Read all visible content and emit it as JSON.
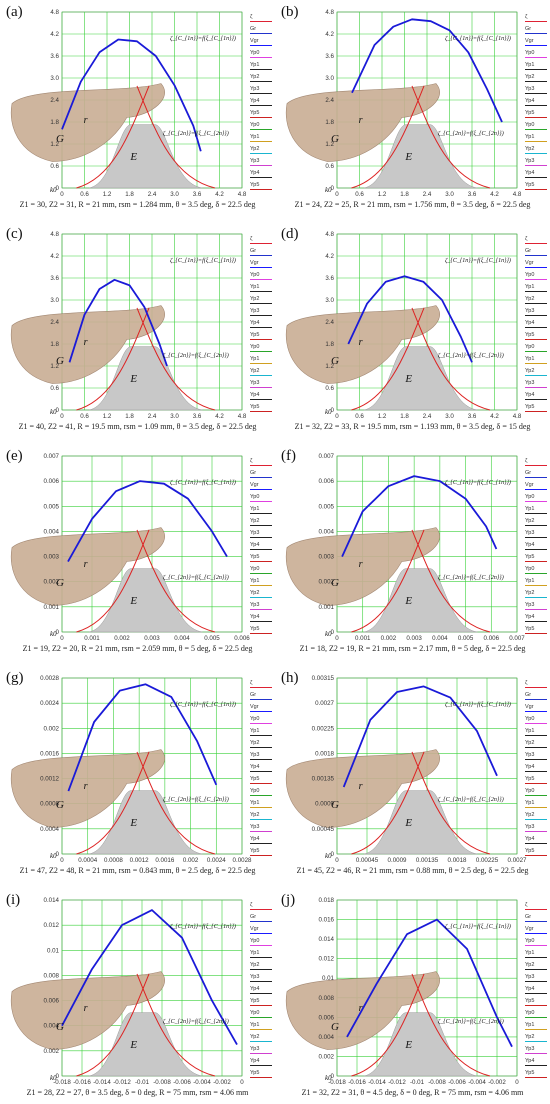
{
  "legend_labels": [
    "ζ",
    "Gr",
    "Vgr",
    "Yp0",
    "Yp1",
    "Yp2",
    "Yp3",
    "Yp4",
    "Yp5",
    "Yp0",
    "Yp1",
    "Yp2",
    "Yp3",
    "Yp4",
    "Yp5"
  ],
  "legend_colors": [
    "#d23",
    "#2233cc",
    "#1a1aff",
    "#e040e0",
    "#222",
    "#222",
    "#222",
    "#222",
    "#cc2222",
    "#2aa52a",
    "#d0a020",
    "#1ab5cf",
    "#d040d0",
    "#222",
    "#cc2222"
  ],
  "annotations": {
    "curve_top": "ζ_{C_{1n}}=f(ξ_{C_{1n}})",
    "curve_bot": "ζ_{C_{2n}}=f(ξ_{C_{2n}})",
    "G": "G",
    "E": "E",
    "r": "r",
    "k0": "k0"
  },
  "chart_data": [
    {
      "id": "a",
      "label": "(a)",
      "type": "line",
      "caption": "Z1 = 30, Z2 = 31, R = 21 mm, rsm = 1.284 mm, θ = 3.5 deg, δ = 22.5 deg",
      "xlim": [
        0,
        4.8
      ],
      "ylim": [
        0,
        4.8
      ],
      "xticks": [
        "0",
        "0.6",
        "1.2",
        "1.8",
        "2.4",
        "3.0",
        "3.6",
        "4.2",
        "4.8"
      ],
      "yticks": [
        "0",
        "0.6",
        "1.2",
        "1.8",
        "2.4",
        "3.0",
        "3.6",
        "4.2",
        "4.8"
      ],
      "series": [
        {
          "x": [
            0,
            0.5,
            1,
            1.5,
            2,
            2.5,
            3,
            3.5,
            3.7
          ],
          "y": [
            1.6,
            2.9,
            3.7,
            4.05,
            4.0,
            3.6,
            2.8,
            1.7,
            1.0
          ]
        }
      ]
    },
    {
      "id": "b",
      "label": "(b)",
      "type": "line",
      "caption": "Z1 = 24, Z2 = 25, R = 21 mm, rsm = 1.756 mm, θ = 3.5 deg, δ = 22.5 deg",
      "xlim": [
        0,
        4.8
      ],
      "ylim": [
        0,
        4.8
      ],
      "xticks": [
        "0",
        "0.6",
        "1.2",
        "1.8",
        "2.4",
        "3.0",
        "3.6",
        "4.2",
        "4.8"
      ],
      "yticks": [
        "0",
        "0.6",
        "1.2",
        "1.8",
        "2.4",
        "3.0",
        "3.6",
        "4.2",
        "4.8"
      ],
      "series": [
        {
          "x": [
            0.4,
            1,
            1.5,
            2,
            2.5,
            3,
            3.5,
            4,
            4.4
          ],
          "y": [
            2.6,
            3.9,
            4.4,
            4.6,
            4.55,
            4.3,
            3.7,
            2.7,
            1.8
          ]
        }
      ]
    },
    {
      "id": "c",
      "label": "(c)",
      "type": "line",
      "caption": "Z1 = 40, Z2 = 41, R = 19.5 mm, rsm = 1.09 mm, θ = 3.5 deg, δ = 22.5 deg",
      "xlim": [
        0,
        4.8
      ],
      "ylim": [
        0,
        4.8
      ],
      "xticks": [
        "0",
        "0.6",
        "1.2",
        "1.8",
        "2.4",
        "3.0",
        "3.6",
        "4.2",
        "4.8"
      ],
      "yticks": [
        "0",
        "0.6",
        "1.2",
        "1.8",
        "2.4",
        "3.0",
        "3.6",
        "4.2",
        "4.8"
      ],
      "series": [
        {
          "x": [
            0.2,
            0.6,
            1,
            1.4,
            1.8,
            2.2,
            2.6,
            2.8
          ],
          "y": [
            1.3,
            2.6,
            3.3,
            3.55,
            3.4,
            2.8,
            1.8,
            1.2
          ]
        }
      ]
    },
    {
      "id": "d",
      "label": "(d)",
      "type": "line",
      "caption": "Z1 = 32, Z2 = 33, R = 19.5 mm, rsm = 1.193 mm, θ = 3.5 deg, δ = 15 deg",
      "xlim": [
        0,
        4.8
      ],
      "ylim": [
        0,
        4.8
      ],
      "xticks": [
        "0",
        "0.6",
        "1.2",
        "1.8",
        "2.4",
        "3.0",
        "3.6",
        "4.2",
        "4.8"
      ],
      "yticks": [
        "0",
        "0.6",
        "1.2",
        "1.8",
        "2.4",
        "3.0",
        "3.6",
        "4.2",
        "4.8"
      ],
      "series": [
        {
          "x": [
            0.3,
            0.8,
            1.3,
            1.8,
            2.3,
            2.8,
            3.3,
            3.6
          ],
          "y": [
            1.8,
            2.9,
            3.5,
            3.65,
            3.5,
            3.0,
            2.0,
            1.3
          ]
        }
      ]
    },
    {
      "id": "e",
      "label": "(e)",
      "type": "line",
      "caption": "Z1 = 19, Z2 = 20, R = 21 mm, rsm = 2.059 mm, θ = 5 deg, δ = 22.5 deg",
      "xlim": [
        0,
        0.006
      ],
      "ylim": [
        0,
        0.007
      ],
      "xticks": [
        "0",
        "0.001",
        "0.002",
        "0.003",
        "0.004",
        "0.005",
        "0.006"
      ],
      "yticks": [
        "0",
        "0.001",
        "0.002",
        "0.003",
        "0.004",
        "0.005",
        "0.006",
        "0.007"
      ],
      "series": [
        {
          "x": [
            0.0002,
            0.001,
            0.0018,
            0.0026,
            0.0034,
            0.0042,
            0.005,
            0.0055
          ],
          "y": [
            0.0028,
            0.0045,
            0.0056,
            0.006,
            0.0059,
            0.0053,
            0.004,
            0.003
          ]
        }
      ]
    },
    {
      "id": "f",
      "label": "(f)",
      "type": "line",
      "caption": "Z1 = 18, Z2 = 19, R = 21 mm, rsm = 2.17 mm, θ = 5 deg, δ = 22.5 deg",
      "xlim": [
        0,
        0.007
      ],
      "ylim": [
        0,
        0.007
      ],
      "xticks": [
        "0",
        "0.001",
        "0.002",
        "0.003",
        "0.004",
        "0.005",
        "0.006",
        "0.007"
      ],
      "yticks": [
        "0",
        "0.001",
        "0.002",
        "0.003",
        "0.004",
        "0.005",
        "0.006",
        "0.007"
      ],
      "series": [
        {
          "x": [
            0.0002,
            0.001,
            0.002,
            0.003,
            0.004,
            0.005,
            0.0058,
            0.0062
          ],
          "y": [
            0.003,
            0.0048,
            0.0058,
            0.0062,
            0.006,
            0.0053,
            0.0042,
            0.0033
          ]
        }
      ]
    },
    {
      "id": "g",
      "label": "(g)",
      "type": "line",
      "caption": "Z1 = 47, Z2 = 48, R = 21 mm, rsm = 0.843 mm, θ = 2.5 deg, δ = 22.5 deg",
      "xlim": [
        0,
        0.0028
      ],
      "ylim": [
        0,
        0.0028
      ],
      "xticks": [
        "0",
        "0.0004",
        "0.0008",
        "0.0012",
        "0.0016",
        "0.002",
        "0.0024",
        "0.0028"
      ],
      "yticks": [
        "0",
        "0.0004",
        "0.0008",
        "0.0012",
        "0.0016",
        "0.002",
        "0.0024",
        "0.0028"
      ],
      "series": [
        {
          "x": [
            0.0001,
            0.0005,
            0.0009,
            0.0013,
            0.0017,
            0.0021,
            0.0024
          ],
          "y": [
            0.001,
            0.0021,
            0.0026,
            0.0027,
            0.0025,
            0.0018,
            0.0011
          ]
        }
      ]
    },
    {
      "id": "h",
      "label": "(h)",
      "type": "line",
      "caption": "Z1 = 45, Z2 = 46, R = 21 mm, rsm = 0.88 mm, θ = 2.5 deg, δ = 22.5 deg",
      "xlim": [
        0,
        0.0027
      ],
      "ylim": [
        0,
        0.00315
      ],
      "xticks": [
        "0",
        "0.00045",
        "0.0009",
        "0.00135",
        "0.0018",
        "0.00225",
        "0.0027"
      ],
      "yticks": [
        "0",
        "0.00045",
        "0.0009",
        "0.00135",
        "0.0018",
        "0.00225",
        "0.0027",
        "0.00315"
      ],
      "series": [
        {
          "x": [
            0.0001,
            0.0005,
            0.0009,
            0.0013,
            0.0017,
            0.0021,
            0.0024
          ],
          "y": [
            0.0012,
            0.0024,
            0.0029,
            0.003,
            0.0028,
            0.0022,
            0.0014
          ]
        }
      ]
    },
    {
      "id": "i",
      "label": "(i)",
      "type": "line",
      "caption": "Z1 = 28, Z2 = 27, θ = 3.5 deg, δ = 0 deg, R = 75 mm, rsm = 4.06 mm",
      "xlim": [
        -0.018,
        0
      ],
      "ylim": [
        0,
        0.014
      ],
      "xticks": [
        "-0.018",
        "-0.016",
        "-0.014",
        "-0.012",
        "-0.01",
        "-0.008",
        "-0.006",
        "-0.004",
        "-0.002",
        "0"
      ],
      "yticks": [
        "0",
        "0.002",
        "0.004",
        "0.006",
        "0.008",
        "0.01",
        "0.012",
        "0.014"
      ],
      "series": [
        {
          "x": [
            -0.018,
            -0.015,
            -0.012,
            -0.009,
            -0.006,
            -0.003,
            -0.0005
          ],
          "y": [
            0.004,
            0.0085,
            0.012,
            0.0132,
            0.011,
            0.006,
            0.0025
          ]
        }
      ]
    },
    {
      "id": "j",
      "label": "(j)",
      "type": "line",
      "caption": "Z1 = 32, Z2 = 31, θ = 4.5 deg, δ = 0 deg, R = 75 mm, rsm = 4.06 mm",
      "xlim": [
        -0.018,
        0
      ],
      "ylim": [
        0,
        0.018
      ],
      "xticks": [
        "-0.018",
        "-0.016",
        "-0.014",
        "-0.012",
        "-0.01",
        "-0.008",
        "-0.006",
        "-0.004",
        "-0.002",
        "0"
      ],
      "yticks": [
        "0",
        "0.002",
        "0.004",
        "0.006",
        "0.008",
        "0.01",
        "0.012",
        "0.014",
        "0.016",
        "0.018"
      ],
      "series": [
        {
          "x": [
            -0.017,
            -0.014,
            -0.011,
            -0.008,
            -0.005,
            -0.002,
            -0.0005
          ],
          "y": [
            0.004,
            0.0095,
            0.0145,
            0.016,
            0.013,
            0.006,
            0.003
          ]
        }
      ]
    }
  ]
}
